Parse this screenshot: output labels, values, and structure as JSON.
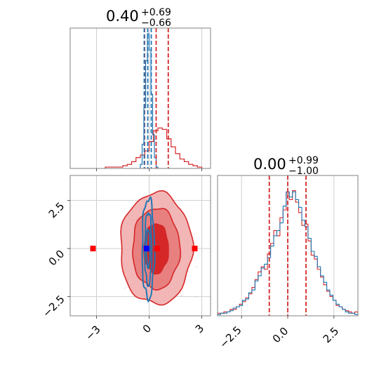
{
  "colors": {
    "red": "#d62728",
    "red_light": "#f2b6b6",
    "red_mid": "#e88080",
    "blue": "#1f77b4",
    "marker_red": "#ff0000",
    "marker_blue": "#0000ff"
  },
  "chart_data": [
    {
      "type": "histogram",
      "panel": "top-left marginal",
      "title": {
        "value": "0.40",
        "plus": "+0.69",
        "minus": "−0.66"
      },
      "xlim": [
        -4.5,
        3.5
      ],
      "grid": true,
      "series": [
        {
          "color": "red",
          "bin_edges": [
            -2.5,
            -2.25,
            -2.0,
            -1.75,
            -1.5,
            -1.25,
            -1.0,
            -0.75,
            -0.5,
            -0.25,
            0.0,
            0.25,
            0.5,
            0.75,
            1.0,
            1.25,
            1.5,
            1.75,
            2.0,
            2.25,
            2.5,
            2.75,
            3.0
          ],
          "counts": [
            0.01,
            0.01,
            0.01,
            0.01,
            0.02,
            0.03,
            0.05,
            0.08,
            0.1,
            0.13,
            0.2,
            0.28,
            0.3,
            0.29,
            0.22,
            0.16,
            0.11,
            0.07,
            0.05,
            0.03,
            0.02,
            0.01
          ]
        },
        {
          "color": "blue",
          "bin_edges": [
            -0.5,
            -0.4,
            -0.3,
            -0.2,
            -0.1,
            0.0,
            0.1,
            0.2,
            0.3,
            0.4,
            0.5
          ],
          "counts": [
            0.03,
            0.18,
            0.45,
            0.8,
            1.0,
            0.88,
            0.55,
            0.25,
            0.08,
            0.01
          ]
        }
      ],
      "quantile_lines": {
        "red": [
          -0.26,
          0.4,
          1.09
        ],
        "blue": [
          -0.28,
          -0.08,
          0.12
        ]
      },
      "xticks": [
        -3,
        0,
        3
      ]
    },
    {
      "type": "scatter",
      "panel": "bottom-left joint",
      "xlim": [
        -4.5,
        3.5
      ],
      "ylim": [
        -3.5,
        3.8
      ],
      "grid": true,
      "xticks": [
        "−3",
        "0",
        "3"
      ],
      "yticks": [
        "2.5",
        "0.0",
        "−2.5"
      ],
      "ytick_values": [
        2.5,
        0.0,
        -2.5
      ],
      "xtick_values": [
        -3,
        0,
        3
      ],
      "contours_red": {
        "center": [
          0.4,
          0.0
        ],
        "levels": [
          [
            2.05,
            2.9
          ],
          [
            1.35,
            2.1
          ],
          [
            0.7,
            1.3
          ]
        ]
      },
      "contours_blue": {
        "center": [
          -0.05,
          0.0
        ],
        "levels": [
          [
            0.35,
            2.6
          ],
          [
            0.2,
            1.9
          ],
          [
            0.1,
            1.0
          ]
        ]
      },
      "markers": [
        {
          "x": -3.2,
          "y": 0.0,
          "color": "marker_red"
        },
        {
          "x": 2.6,
          "y": 0.0,
          "color": "marker_red"
        },
        {
          "x": 0.45,
          "y": 0.0,
          "color": "marker_red"
        },
        {
          "x": -0.15,
          "y": 0.0,
          "color": "marker_blue"
        }
      ]
    },
    {
      "type": "histogram",
      "panel": "bottom-right marginal",
      "title": {
        "value": "0.00",
        "plus": "+0.99",
        "minus": "−1.00"
      },
      "xlim": [
        -3.8,
        3.8
      ],
      "grid": true,
      "xticks": [
        "−2.5",
        "0.0",
        "2.5"
      ],
      "xtick_values": [
        -2.5,
        0.0,
        2.5
      ],
      "series": [
        {
          "color": "red",
          "counts": [
            0.02,
            0.02,
            0.03,
            0.03,
            0.05,
            0.05,
            0.07,
            0.09,
            0.11,
            0.14,
            0.17,
            0.22,
            0.28,
            0.34,
            0.38,
            0.36,
            0.48,
            0.56,
            0.66,
            0.62,
            0.76,
            0.82,
            0.95,
            0.9,
            0.97,
            0.88,
            0.8,
            0.7,
            0.71,
            0.58,
            0.47,
            0.44,
            0.36,
            0.3,
            0.24,
            0.19,
            0.15,
            0.12,
            0.08,
            0.07,
            0.05,
            0.04,
            0.03,
            0.02,
            0.03
          ]
        },
        {
          "color": "blue",
          "counts": [
            0.01,
            0.02,
            0.02,
            0.03,
            0.04,
            0.06,
            0.07,
            0.08,
            0.12,
            0.13,
            0.18,
            0.2,
            0.27,
            0.31,
            0.37,
            0.4,
            0.45,
            0.54,
            0.62,
            0.66,
            0.72,
            0.85,
            0.96,
            0.92,
            0.96,
            0.9,
            0.84,
            0.74,
            0.69,
            0.6,
            0.5,
            0.46,
            0.38,
            0.31,
            0.26,
            0.2,
            0.16,
            0.12,
            0.09,
            0.07,
            0.05,
            0.03,
            0.02,
            0.02,
            0.01
          ]
        }
      ],
      "quantile_lines": {
        "red": [
          -1.0,
          0.0,
          0.99
        ]
      }
    }
  ]
}
